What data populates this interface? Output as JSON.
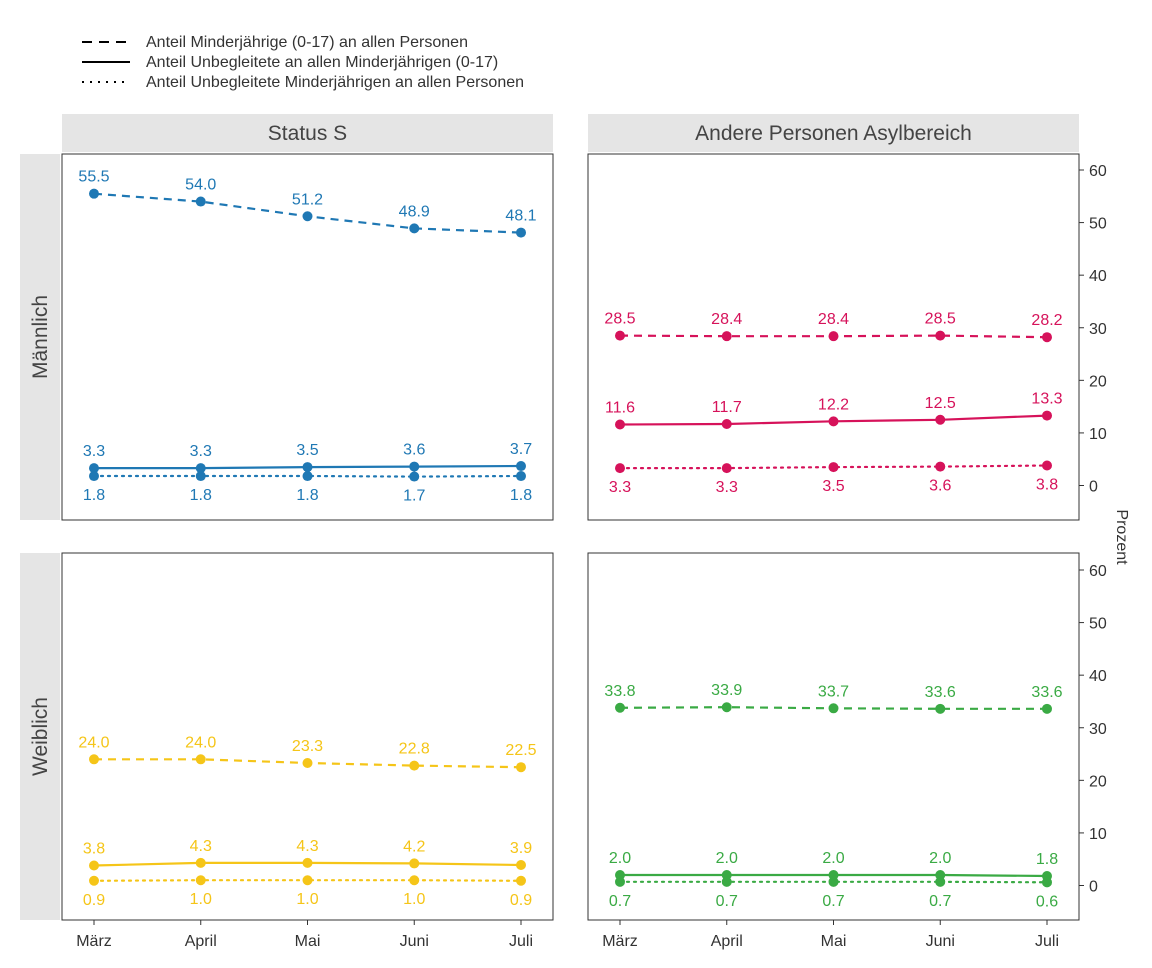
{
  "legend": [
    {
      "label": "Anteil Minderjährige (0-17) an allen Personen",
      "dash": "dashed"
    },
    {
      "label": "Anteil Unbegleitete an allen Minderjährigen (0-17)",
      "dash": "solid"
    },
    {
      "label": "Anteil Unbegleitete Minderjährigen an allen Personen",
      "dash": "dotted"
    }
  ],
  "y_axis_title": "Prozent",
  "y_ticks": [
    "0",
    "10",
    "20",
    "30",
    "40",
    "50",
    "60"
  ],
  "chart_data": {
    "type": "line",
    "categories": [
      "März",
      "April",
      "Mai",
      "Juni",
      "Juli"
    ],
    "ylim": [
      0,
      60
    ],
    "columns": [
      "Status S",
      "Andere Personen Asylbereich"
    ],
    "rows": [
      "Männlich",
      "Weiblich"
    ],
    "panels": [
      {
        "column": "Status S",
        "row": "Männlich",
        "color": "#1f78b4",
        "series": [
          {
            "name": "Anteil Minderjährige (0-17) an allen Personen",
            "dash": "dashed",
            "label_pos": "above",
            "values": [
              55.5,
              54.0,
              51.2,
              48.9,
              48.1
            ],
            "labels": [
              "55.5",
              "54.0",
              "51.2",
              "48.9",
              "48.1"
            ]
          },
          {
            "name": "Anteil Unbegleitete an allen Minderjährigen (0-17)",
            "dash": "solid",
            "label_pos": "above",
            "values": [
              3.3,
              3.3,
              3.5,
              3.6,
              3.7
            ],
            "labels": [
              "3.3",
              "3.3",
              "3.5",
              "3.6",
              "3.7"
            ]
          },
          {
            "name": "Anteil Unbegleitete Minderjährigen an allen Personen",
            "dash": "dotted",
            "label_pos": "below",
            "values": [
              1.8,
              1.8,
              1.8,
              1.7,
              1.8
            ],
            "labels": [
              "1.8",
              "1.8",
              "1.8",
              "1.7",
              "1.8"
            ]
          }
        ]
      },
      {
        "column": "Andere Personen Asylbereich",
        "row": "Männlich",
        "color": "#d6125a",
        "series": [
          {
            "name": "Anteil Minderjährige (0-17) an allen Personen",
            "dash": "dashed",
            "label_pos": "above",
            "values": [
              28.5,
              28.4,
              28.4,
              28.5,
              28.2
            ],
            "labels": [
              "28.5",
              "28.4",
              "28.4",
              "28.5",
              "28.2"
            ]
          },
          {
            "name": "Anteil Unbegleitete an allen Minderjährigen (0-17)",
            "dash": "solid",
            "label_pos": "above",
            "values": [
              11.6,
              11.7,
              12.2,
              12.5,
              13.3
            ],
            "labels": [
              "11.6",
              "11.7",
              "12.2",
              "12.5",
              "13.3"
            ]
          },
          {
            "name": "Anteil Unbegleitete Minderjährigen an allen Personen",
            "dash": "dotted",
            "label_pos": "below",
            "values": [
              3.3,
              3.3,
              3.5,
              3.6,
              3.8
            ],
            "labels": [
              "3.3",
              "3.3",
              "3.5",
              "3.6",
              "3.8"
            ]
          }
        ]
      },
      {
        "column": "Status S",
        "row": "Weiblich",
        "color": "#f5c518",
        "series": [
          {
            "name": "Anteil Minderjährige (0-17) an allen Personen",
            "dash": "dashed",
            "label_pos": "above",
            "values": [
              24.0,
              24.0,
              23.3,
              22.8,
              22.5
            ],
            "labels": [
              "24.0",
              "24.0",
              "23.3",
              "22.8",
              "22.5"
            ]
          },
          {
            "name": "Anteil Unbegleitete an allen Minderjährigen (0-17)",
            "dash": "solid",
            "label_pos": "above",
            "values": [
              3.8,
              4.3,
              4.3,
              4.2,
              3.9
            ],
            "labels": [
              "3.8",
              "4.3",
              "4.3",
              "4.2",
              "3.9"
            ]
          },
          {
            "name": "Anteil Unbegleitete Minderjährigen an allen Personen",
            "dash": "dotted",
            "label_pos": "below",
            "values": [
              0.9,
              1.0,
              1.0,
              1.0,
              0.9
            ],
            "labels": [
              "0.9",
              "1.0",
              "1.0",
              "1.0",
              "0.9"
            ]
          }
        ]
      },
      {
        "column": "Andere Personen Asylbereich",
        "row": "Weiblich",
        "color": "#3aaa44",
        "series": [
          {
            "name": "Anteil Minderjährige (0-17) an allen Personen",
            "dash": "dashed",
            "label_pos": "above",
            "values": [
              33.8,
              33.9,
              33.7,
              33.6,
              33.6
            ],
            "labels": [
              "33.8",
              "33.9",
              "33.7",
              "33.6",
              "33.6"
            ]
          },
          {
            "name": "Anteil Unbegleitete an allen Minderjährigen (0-17)",
            "dash": "solid",
            "label_pos": "above",
            "values": [
              2.0,
              2.0,
              2.0,
              2.0,
              1.8
            ],
            "labels": [
              "2.0",
              "2.0",
              "2.0",
              "2.0",
              "1.8"
            ]
          },
          {
            "name": "Anteil Unbegleitete Minderjährigen an allen Personen",
            "dash": "dotted",
            "label_pos": "below",
            "values": [
              0.7,
              0.7,
              0.7,
              0.7,
              0.6
            ],
            "labels": [
              "0.7",
              "0.7",
              "0.7",
              "0.7",
              "0.6"
            ]
          }
        ]
      }
    ]
  }
}
